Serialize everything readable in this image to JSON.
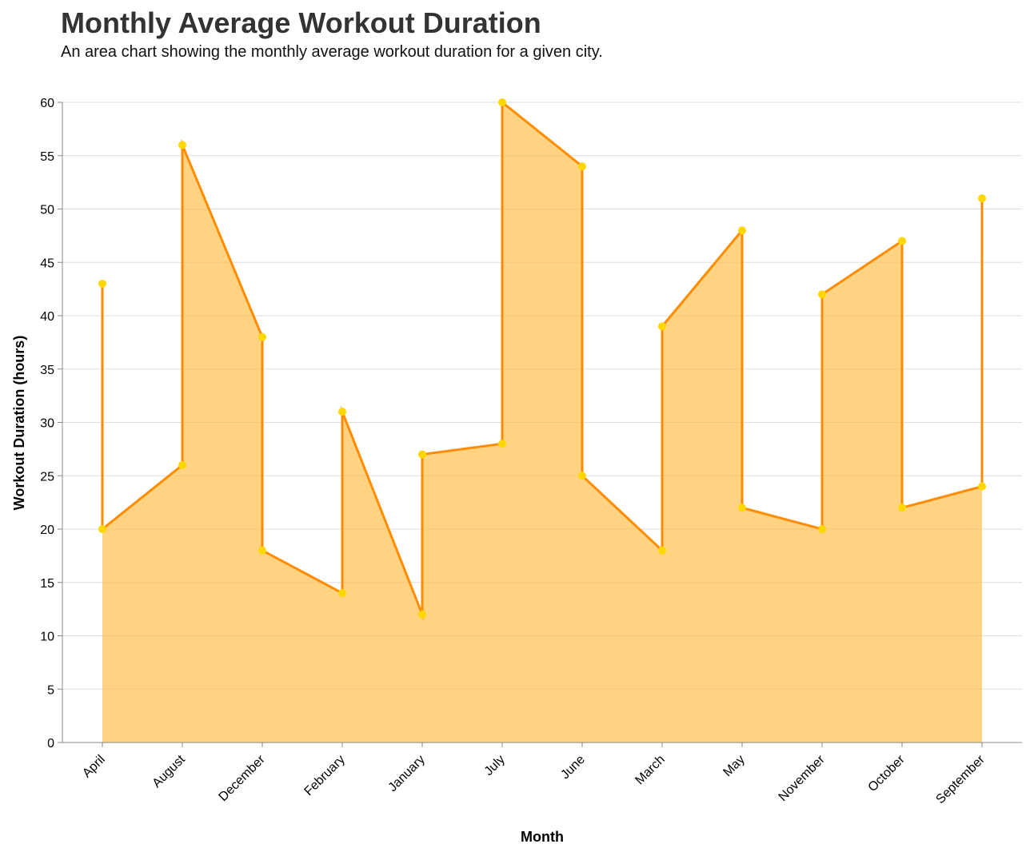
{
  "chart_data": {
    "type": "area",
    "title": "Monthly Average Workout Duration",
    "subtitle": "An area chart showing the monthly average workout duration for a given city.",
    "xlabel": "Month",
    "ylabel": "Workout Duration (hours)",
    "ylim": [
      0,
      60
    ],
    "y_ticks": [
      0,
      5,
      10,
      15,
      20,
      25,
      30,
      35,
      40,
      45,
      50,
      55,
      60
    ],
    "grid": true,
    "categories": [
      "April",
      "August",
      "December",
      "February",
      "January",
      "July",
      "June",
      "March",
      "May",
      "November",
      "October",
      "September"
    ],
    "points": [
      {
        "x": "April",
        "y": 43
      },
      {
        "x": "April",
        "y": 20
      },
      {
        "x": "August",
        "y": 26
      },
      {
        "x": "August",
        "y": 56
      },
      {
        "x": "December",
        "y": 38
      },
      {
        "x": "December",
        "y": 18
      },
      {
        "x": "February",
        "y": 14
      },
      {
        "x": "February",
        "y": 31
      },
      {
        "x": "January",
        "y": 12
      },
      {
        "x": "January",
        "y": 27
      },
      {
        "x": "July",
        "y": 28
      },
      {
        "x": "July",
        "y": 60
      },
      {
        "x": "June",
        "y": 54
      },
      {
        "x": "June",
        "y": 25
      },
      {
        "x": "March",
        "y": 18
      },
      {
        "x": "March",
        "y": 39
      },
      {
        "x": "May",
        "y": 48
      },
      {
        "x": "May",
        "y": 22
      },
      {
        "x": "November",
        "y": 20
      },
      {
        "x": "November",
        "y": 42
      },
      {
        "x": "October",
        "y": 47
      },
      {
        "x": "October",
        "y": 22
      },
      {
        "x": "September",
        "y": 24
      },
      {
        "x": "September",
        "y": 51
      }
    ],
    "colors": {
      "line": "#FF8C00",
      "area_fill": "#FFC04D",
      "point": "#FFD700",
      "grid": "#dddddd",
      "axis": "#888888"
    }
  }
}
